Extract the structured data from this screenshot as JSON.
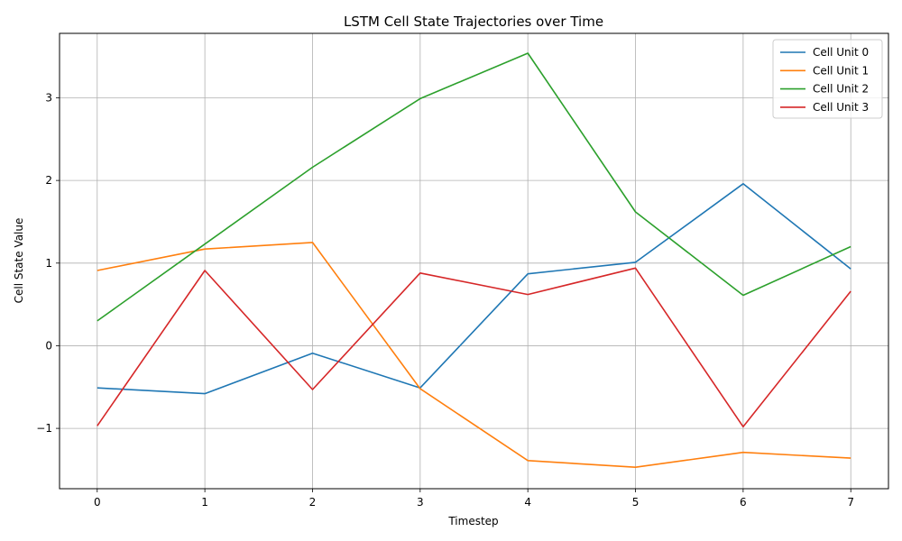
{
  "chart_data": {
    "type": "line",
    "title": "LSTM Cell State Trajectories over Time",
    "xlabel": "Timestep",
    "ylabel": "Cell State Value",
    "x": [
      0,
      1,
      2,
      3,
      4,
      5,
      6,
      7
    ],
    "xlim": [
      -0.35,
      7.35
    ],
    "ylim": [
      -1.73,
      3.78
    ],
    "xticks": [
      0,
      1,
      2,
      3,
      4,
      5,
      6,
      7
    ],
    "yticks": [
      -1,
      0,
      1,
      2,
      3
    ],
    "ytick_labels": [
      "−1",
      "0",
      "1",
      "2",
      "3"
    ],
    "grid": true,
    "legend_position": "top-right",
    "series": [
      {
        "name": "Cell Unit 0",
        "color": "#1f77b4",
        "values": [
          -0.51,
          -0.58,
          -0.09,
          -0.51,
          0.87,
          1.01,
          1.96,
          0.93
        ]
      },
      {
        "name": "Cell Unit 1",
        "color": "#ff7f0e",
        "values": [
          0.91,
          1.17,
          1.25,
          -0.52,
          -1.39,
          -1.47,
          -1.29,
          -1.36
        ]
      },
      {
        "name": "Cell Unit 2",
        "color": "#2ca02c",
        "values": [
          0.3,
          1.23,
          2.16,
          2.99,
          3.54,
          1.62,
          0.61,
          1.2
        ]
      },
      {
        "name": "Cell Unit 3",
        "color": "#d62728",
        "values": [
          -0.97,
          0.91,
          -0.53,
          0.88,
          0.62,
          0.94,
          -0.98,
          0.66
        ]
      }
    ]
  }
}
